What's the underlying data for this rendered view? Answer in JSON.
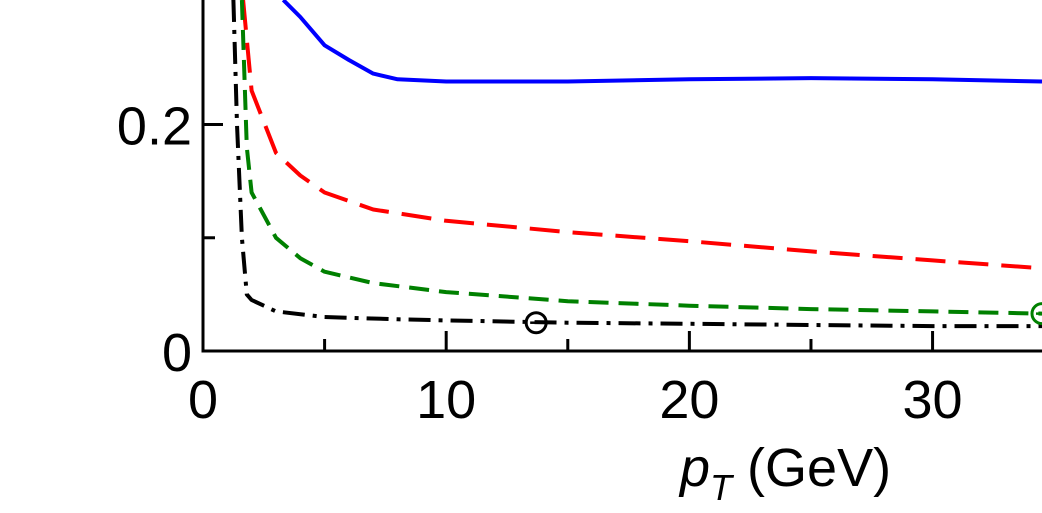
{
  "chart_data": {
    "type": "line",
    "xlabel_var": "p",
    "xlabel_sub": "T",
    "xlabel_unit": " (GeV)",
    "xlim": [
      0,
      34.5
    ],
    "ylim": [
      0,
      0.31
    ],
    "x_ticks": [
      0,
      10,
      20,
      30
    ],
    "x_tick_labels": [
      "0",
      "10",
      "20",
      "30"
    ],
    "x_minor_ticks": [
      5,
      15,
      25
    ],
    "y_ticks": [
      0,
      0.2
    ],
    "y_tick_labels": [
      "0",
      "0.2"
    ],
    "y_minor_ticks": [
      0.1
    ],
    "grid": false,
    "series": [
      {
        "color": "#0000ff",
        "dash": "solid",
        "x": [
          3.3,
          4.0,
          5.0,
          6.0,
          7.0,
          8.0,
          10.0,
          15.0,
          20.0,
          25.0,
          30.0,
          34.5
        ],
        "y": [
          0.31,
          0.295,
          0.27,
          0.257,
          0.245,
          0.24,
          0.238,
          0.238,
          0.24,
          0.241,
          0.24,
          0.238
        ]
      },
      {
        "color": "#ff0000",
        "dash": "long-dash",
        "x": [
          1.65,
          2.0,
          3.0,
          4.0,
          5.0,
          7.0,
          10.0,
          15.0,
          20.0,
          25.0,
          30.0,
          34.5
        ],
        "y": [
          0.31,
          0.23,
          0.175,
          0.155,
          0.14,
          0.125,
          0.115,
          0.105,
          0.097,
          0.088,
          0.08,
          0.073
        ]
      },
      {
        "color": "#008000",
        "dash": "dash",
        "x": [
          1.6,
          1.8,
          2.0,
          3.0,
          4.0,
          5.0,
          7.0,
          10.0,
          15.0,
          20.0,
          25.0,
          30.0,
          34.5
        ],
        "y": [
          0.31,
          0.18,
          0.14,
          0.1,
          0.082,
          0.07,
          0.06,
          0.052,
          0.044,
          0.04,
          0.037,
          0.035,
          0.033
        ]
      },
      {
        "color": "#000000",
        "dash": "dash-dot",
        "x": [
          1.25,
          1.4,
          1.6,
          1.8,
          2.0,
          3.0,
          5.0,
          8.0,
          10.0,
          15.0,
          20.0,
          25.0,
          30.0,
          34.5
        ],
        "y": [
          0.31,
          0.2,
          0.1,
          0.05,
          0.045,
          0.035,
          0.03,
          0.028,
          0.027,
          0.025,
          0.024,
          0.023,
          0.022,
          0.022
        ]
      }
    ],
    "markers": [
      {
        "x": 13.7,
        "y": 0.025,
        "color": "#000000"
      },
      {
        "x": 34.5,
        "y": 0.033,
        "color": "#008000"
      }
    ]
  }
}
